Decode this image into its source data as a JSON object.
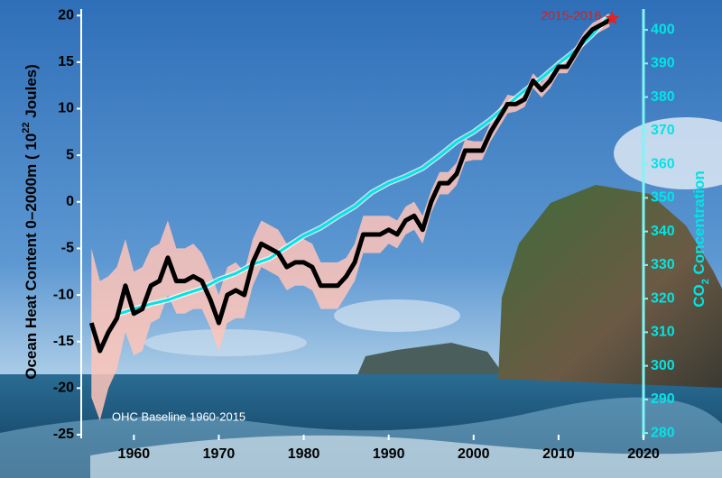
{
  "chart_data": {
    "type": "line",
    "x": [
      1955,
      1956,
      1957,
      1958,
      1959,
      1960,
      1961,
      1962,
      1963,
      1964,
      1965,
      1966,
      1967,
      1968,
      1969,
      1970,
      1971,
      1972,
      1973,
      1974,
      1975,
      1976,
      1977,
      1978,
      1979,
      1980,
      1981,
      1982,
      1983,
      1984,
      1985,
      1986,
      1987,
      1988,
      1989,
      1990,
      1991,
      1992,
      1993,
      1994,
      1995,
      1996,
      1997,
      1998,
      1999,
      2000,
      2001,
      2002,
      2003,
      2004,
      2005,
      2006,
      2007,
      2008,
      2009,
      2010,
      2011,
      2012,
      2013,
      2014,
      2015,
      2016
    ],
    "series": [
      {
        "color": "#ffc4b8",
        "lower": [
          -21,
          -23.5,
          -20,
          -18,
          -14,
          -16.5,
          -16,
          -13,
          -12.5,
          -10,
          -12,
          -12,
          -11.5,
          -11.5,
          -13.5,
          -16,
          -13,
          -12.5,
          -12.5,
          -9,
          -7,
          -7.5,
          -8,
          -9.5,
          -9,
          -9,
          -9.5,
          -11.5,
          -11.5,
          -11.5,
          -10,
          -8.5,
          -5.5,
          -5.5,
          -5.5,
          -4.5,
          -5,
          -3.5,
          -3,
          -4.5,
          -1.2,
          0.8,
          0.8,
          1.8,
          4.3,
          4.5,
          4.5,
          6.5,
          8,
          9.5,
          9.7,
          10.2,
          12.2,
          11.2,
          12.2,
          13.8,
          13.8,
          15.3,
          16.8,
          17.8,
          18.3,
          18.8
        ],
        "upper": [
          -5,
          -8.5,
          -8,
          -7,
          -4,
          -7.5,
          -7,
          -5,
          -4.5,
          -2,
          -5,
          -5,
          -4.5,
          -5.5,
          -7.5,
          -10,
          -7,
          -6.5,
          -7.5,
          -4,
          -2,
          -2.5,
          -3,
          -4.5,
          -4,
          -4,
          -4.5,
          -6.5,
          -6.5,
          -6.5,
          -6,
          -4.5,
          -1.5,
          -1.5,
          -1.5,
          -1.5,
          -2,
          -0.5,
          0,
          -1.5,
          1.2,
          3.2,
          3.2,
          4.2,
          6.7,
          6.5,
          6.5,
          8.5,
          10,
          11.5,
          11.3,
          11.8,
          13.8,
          12.8,
          13.8,
          15.2,
          15.2,
          16.7,
          18.2,
          19.2,
          19.7,
          20.2
        ]
      },
      {
        "color": "#00e5e5",
        "axis": "y2",
        "x": [
          1958,
          1960,
          1962,
          1964,
          1966,
          1968,
          1970,
          1972,
          1974,
          1976,
          1978,
          1980,
          1982,
          1984,
          1986,
          1988,
          1990,
          1992,
          1994,
          1996,
          1998,
          2000,
          2002,
          2004,
          2006,
          2008,
          2010,
          2012,
          2014,
          2016
        ],
        "values": [
          315.3,
          316.9,
          318.4,
          319.6,
          321.4,
          323.0,
          325.7,
          327.5,
          330.2,
          332.0,
          335.4,
          338.7,
          341.1,
          344.4,
          347.4,
          351.6,
          354.4,
          356.4,
          358.8,
          362.6,
          366.7,
          369.6,
          373.3,
          377.7,
          381.9,
          385.6,
          389.9,
          393.9,
          398.6,
          404.2
        ]
      },
      {
        "color": "#000000",
        "values": [
          -13,
          -16,
          -14,
          -12.5,
          -9,
          -12,
          -11.5,
          -9,
          -8.5,
          -6,
          -8.5,
          -8.5,
          -8,
          -8.5,
          -10.5,
          -13,
          -10,
          -9.5,
          -10,
          -6.5,
          -4.5,
          -5,
          -5.5,
          -7,
          -6.5,
          -6.5,
          -7,
          -9,
          -9,
          -9,
          -8,
          -6.5,
          -3.5,
          -3.5,
          -3.5,
          -3,
          -3.5,
          -2,
          -1.5,
          -3,
          0,
          2,
          2,
          3,
          5.5,
          5.5,
          5.5,
          7.5,
          9,
          10.5,
          10.5,
          11,
          13,
          12,
          13,
          14.5,
          14.5,
          16,
          17.5,
          18.5,
          19,
          19.5
        ]
      }
    ],
    "y_label": [
      "Ocean Heat Content 0–2000m ( 10",
      "22",
      " Joules)"
    ],
    "y2_label": [
      "CO",
      "2",
      " Concentration"
    ],
    "annotations": [
      "2015-2016",
      "OHC Baseline 1960-2015"
    ],
    "xlim": [
      1953.8,
      2020
    ],
    "xticks": [
      1960,
      1970,
      1980,
      1990,
      2000,
      2010,
      2020
    ],
    "ylim": [
      -25,
      20.7
    ],
    "yticks": [
      -25,
      -20,
      -15,
      -10,
      -5,
      0,
      5,
      10,
      15,
      20
    ],
    "y2lim": [
      279.5,
      406.2
    ],
    "y2ticks": [
      280,
      290,
      300,
      310,
      320,
      330,
      340,
      350,
      360,
      370,
      380,
      390,
      400
    ],
    "grid": false
  }
}
